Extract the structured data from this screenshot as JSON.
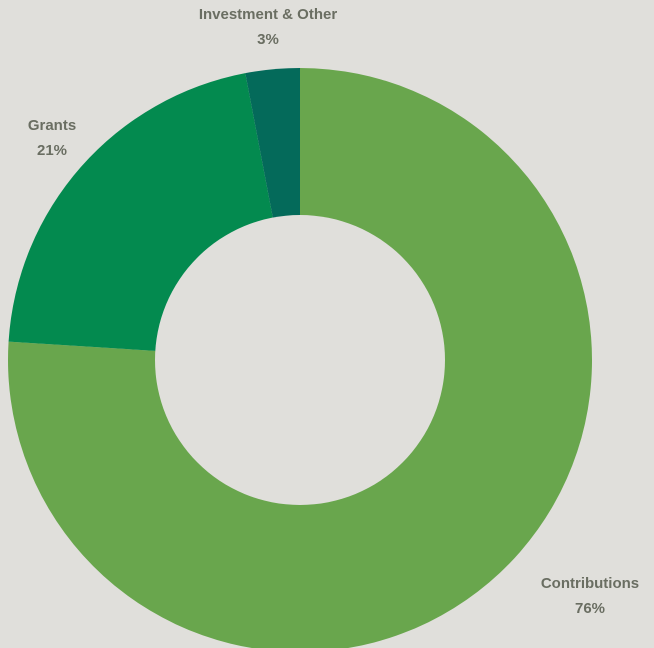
{
  "chart_data": {
    "type": "pie",
    "donut": true,
    "title": "",
    "slices": [
      {
        "label": "Contributions",
        "value": 76,
        "value_label": "76%",
        "color": "#69a64d"
      },
      {
        "label": "Grants",
        "value": 21,
        "value_label": "21%",
        "color": "#038a4f"
      },
      {
        "label": "Investment & Other",
        "value": 3,
        "value_label": "3%",
        "color": "#046a5a"
      }
    ],
    "label_color": "#6a6e62",
    "background": "#e0dfdb"
  }
}
